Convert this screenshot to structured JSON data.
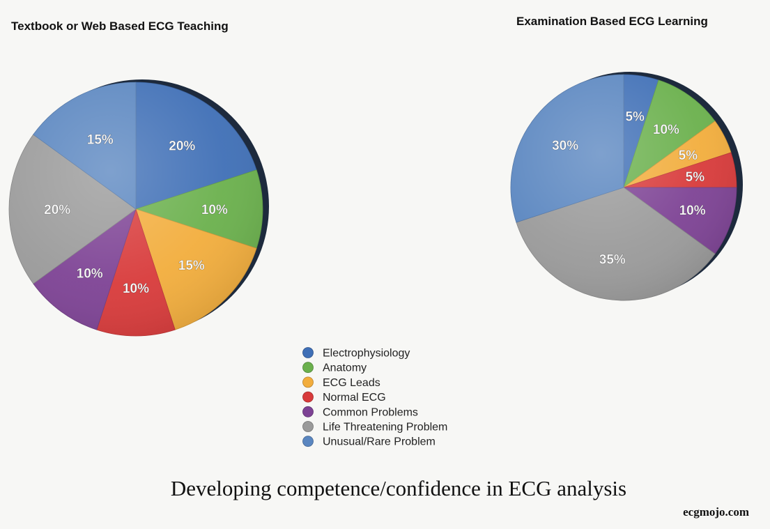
{
  "caption": "Developing competence/confidence in ECG analysis",
  "watermark": "ecgmojo.com",
  "categories": [
    {
      "name": "Electrophysiology",
      "color": "#3f6fb6"
    },
    {
      "name": "Anatomy",
      "color": "#6ab04c"
    },
    {
      "name": "ECG Leads",
      "color": "#f2ad3c"
    },
    {
      "name": "Normal ECG",
      "color": "#d83a3a"
    },
    {
      "name": "Common Problems",
      "color": "#7d4294"
    },
    {
      "name": "Life Threatening Problem",
      "color": "#9a9a9a"
    },
    {
      "name": "Unusual/Rare Problem",
      "color": "#5a86c0"
    }
  ],
  "chart_data": [
    {
      "type": "pie",
      "title": "Textbook or Web Based ECG Teaching",
      "categories": [
        "Electrophysiology",
        "Anatomy",
        "ECG Leads",
        "Normal ECG",
        "Common Problems",
        "Life Threatening Problem",
        "Unusual/Rare Problem"
      ],
      "values": [
        20,
        10,
        15,
        10,
        10,
        20,
        15
      ],
      "labels": [
        "20%",
        "10%",
        "15%",
        "10%",
        "10%",
        "20%",
        "15%"
      ],
      "legend": "bottom-center"
    },
    {
      "type": "pie",
      "title": "Examination Based ECG Learning",
      "categories": [
        "Electrophysiology",
        "Anatomy",
        "ECG Leads",
        "Normal ECG",
        "Common Problems",
        "Life Threatening Problem",
        "Unusual/Rare Problem"
      ],
      "values": [
        5,
        10,
        5,
        5,
        10,
        35,
        30
      ],
      "labels": [
        "5%",
        "10%",
        "5%",
        "5%",
        "10%",
        "35%",
        "30%"
      ],
      "legend": "bottom-center"
    }
  ]
}
